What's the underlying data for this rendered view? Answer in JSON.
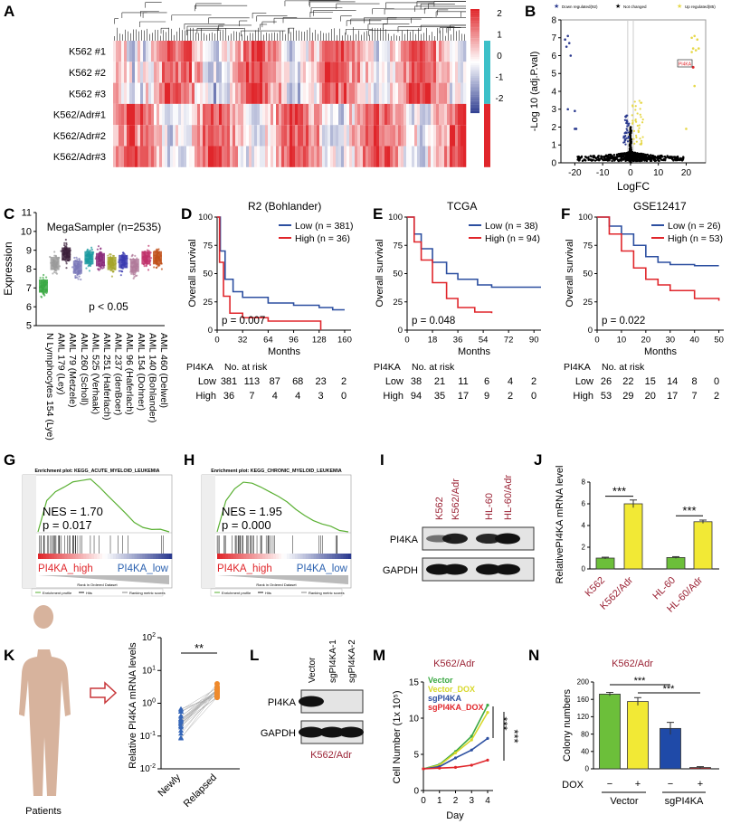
{
  "panel_letters": {
    "A": "A",
    "B": "B",
    "C": "C",
    "D": "D",
    "E": "E",
    "F": "F",
    "G": "G",
    "H": "H",
    "I": "I",
    "J": "J",
    "K": "K",
    "L": "L",
    "M": "M",
    "N": "N"
  },
  "colors": {
    "red": "#e0262b",
    "blue": "#2b3a8f",
    "green": "#6cbf3a",
    "yellow": "#f2e935",
    "darkblue": "#1f4aa8",
    "km_low": "#2c4fa0",
    "km_high": "#e0262b",
    "label_red": "#9b2335"
  },
  "chart_data": [
    {
      "panel": "A",
      "type": "heatmap",
      "rows": [
        "K562 #1",
        "K562 #2",
        "K562 #3",
        "K562/Adr#1",
        "K562/Adr#2",
        "K562/Adr#3"
      ],
      "colorbar_ticks": [
        2,
        1,
        0,
        -1,
        -2
      ],
      "range": [
        -2,
        2
      ]
    },
    {
      "panel": "B",
      "type": "scatter",
      "legend": [
        "Down regulated(92)",
        "Not changed",
        "Up regulated(85)"
      ],
      "xlabel": "LogFC",
      "ylabel": "-Log 10 (adj.P.val)",
      "xticks": [
        -20,
        -10,
        0,
        10,
        20
      ],
      "yticks": [
        0,
        1,
        2,
        3,
        4,
        5,
        6,
        7,
        8
      ],
      "xlim": [
        -25,
        27
      ],
      "ylim": [
        0,
        8
      ],
      "annotation": "PI4KA",
      "highlight": {
        "x": 22.5,
        "y": 5.35
      }
    },
    {
      "panel": "C",
      "type": "scatter",
      "title": "MegaSampler (n=2535)",
      "ylabel": "Expression",
      "ylim": [
        5,
        11
      ],
      "yticks": [
        5,
        6,
        7,
        8,
        9,
        10,
        11
      ],
      "annotation": "p < 0.05",
      "categories": [
        "N Lymphocytes 154 (Lye)",
        "AML 179 (Ley)",
        "AML 79 (Metzele)",
        "AML 260 (Scholl)",
        "AML 525 (Verhaak)",
        "AML 251 (Haferlach)",
        "AML 237 (denBoer)",
        "AML 96 (Haferlach)",
        "AML 154 (Dohner)",
        "AML 140 (Bohlander)",
        "AML 460 (Delwel)"
      ],
      "medians": [
        7.1,
        8.3,
        8.8,
        8.1,
        8.6,
        8.5,
        8.3,
        8.4,
        8.2,
        8.6,
        8.6
      ],
      "group_colors": [
        "#3aa843",
        "#9a9a9a",
        "#3b1f3a",
        "#7a78b8",
        "#1a9aa0",
        "#8a2a7a",
        "#a5a52a",
        "#3b3bb0",
        "#b07a9a",
        "#c0306a",
        "#c0501a"
      ]
    },
    {
      "panel": "D",
      "type": "line",
      "title": "R2  (Bohlander)",
      "xlabel": "Months",
      "ylabel": "Overall survival",
      "xlim": [
        0,
        168
      ],
      "ylim": [
        0,
        100
      ],
      "xticks": [
        0,
        32,
        64,
        96,
        128,
        160
      ],
      "yticks": [
        0,
        25,
        50,
        75,
        100
      ],
      "pvalue": "p = 0.007",
      "series": [
        {
          "name": "Low (n = 381)",
          "points": [
            [
              0,
              100
            ],
            [
              4,
              70
            ],
            [
              10,
              45
            ],
            [
              20,
              34
            ],
            [
              32,
              29
            ],
            [
              64,
              24
            ],
            [
              96,
              22
            ],
            [
              128,
              20
            ],
            [
              145,
              18
            ],
            [
              160,
              18
            ]
          ]
        },
        {
          "name": "High (n = 36)",
          "points": [
            [
              0,
              100
            ],
            [
              3,
              60
            ],
            [
              8,
              30
            ],
            [
              16,
              15
            ],
            [
              32,
              11
            ],
            [
              64,
              8
            ],
            [
              128,
              8
            ],
            [
              130,
              0
            ]
          ]
        }
      ],
      "risk_table": {
        "header": [
          "PI4KA",
          "No. at risk"
        ],
        "rows": [
          {
            "label": "Low",
            "values": [
              381,
              113,
              87,
              68,
              23,
              2
            ]
          },
          {
            "label": "High",
            "values": [
              36,
              7,
              4,
              4,
              3,
              0
            ]
          }
        ]
      }
    },
    {
      "panel": "E",
      "type": "line",
      "title": "TCGA",
      "xlabel": "Months",
      "ylabel": "Overall survival",
      "xlim": [
        0,
        95
      ],
      "ylim": [
        0,
        100
      ],
      "xticks": [
        0,
        18,
        36,
        54,
        72,
        90
      ],
      "yticks": [
        0,
        25,
        50,
        75,
        100
      ],
      "pvalue": "p = 0.048",
      "series": [
        {
          "name": "Low (n = 38)",
          "points": [
            [
              0,
              100
            ],
            [
              5,
              85
            ],
            [
              10,
              72
            ],
            [
              18,
              60
            ],
            [
              28,
              50
            ],
            [
              36,
              45
            ],
            [
              50,
              40
            ],
            [
              60,
              38
            ],
            [
              95,
              38
            ]
          ]
        },
        {
          "name": "High (n = 94)",
          "points": [
            [
              0,
              100
            ],
            [
              5,
              78
            ],
            [
              10,
              62
            ],
            [
              18,
              42
            ],
            [
              28,
              28
            ],
            [
              36,
              20
            ],
            [
              48,
              16
            ],
            [
              60,
              15
            ]
          ]
        }
      ],
      "risk_table": {
        "header": [
          "PI4KA",
          "No. at risk"
        ],
        "rows": [
          {
            "label": "Low",
            "values": [
              38,
              21,
              11,
              6,
              4,
              2
            ]
          },
          {
            "label": "High",
            "values": [
              94,
              35,
              17,
              9,
              2,
              0
            ]
          }
        ]
      }
    },
    {
      "panel": "F",
      "type": "line",
      "title": "GSE12417",
      "xlabel": "Months",
      "ylabel": "Overall survival",
      "xlim": [
        0,
        52
      ],
      "ylim": [
        0,
        100
      ],
      "xticks": [
        0,
        10,
        20,
        30,
        40,
        50
      ],
      "yticks": [
        0,
        25,
        50,
        75,
        100
      ],
      "pvalue": "p = 0.022",
      "series": [
        {
          "name": "Low (n = 26)",
          "points": [
            [
              0,
              100
            ],
            [
              5,
              92
            ],
            [
              10,
              85
            ],
            [
              15,
              75
            ],
            [
              20,
              65
            ],
            [
              25,
              60
            ],
            [
              30,
              58
            ],
            [
              40,
              57
            ],
            [
              50,
              57
            ]
          ]
        },
        {
          "name": "High (n = 53)",
          "points": [
            [
              0,
              100
            ],
            [
              5,
              85
            ],
            [
              10,
              70
            ],
            [
              15,
              55
            ],
            [
              20,
              45
            ],
            [
              25,
              40
            ],
            [
              30,
              35
            ],
            [
              40,
              28
            ],
            [
              50,
              26
            ]
          ]
        }
      ],
      "risk_table": {
        "header": [
          "PI4KA",
          "No. at risk"
        ],
        "rows": [
          {
            "label": "Low",
            "values": [
              26,
              22,
              15,
              14,
              8,
              0
            ]
          },
          {
            "label": "High",
            "values": [
              53,
              29,
              20,
              17,
              7,
              2
            ]
          }
        ]
      }
    },
    {
      "panel": "G",
      "type": "line",
      "title": "Enrichment plot: KEGG_ACUTE_MYELOID_LEUKEMIA",
      "nes": "NES = 1.70",
      "pvalue": "p = 0.017",
      "left_label": "PI4KA_high",
      "right_label": "PI4KA_low",
      "xlabel": "Rank in Ordered Dataset",
      "legend": [
        "Enrichment profile",
        "Hits",
        "Ranking metric scores"
      ],
      "es": [
        0,
        0.35,
        0.45,
        0.5,
        0.55,
        0.57,
        0.58,
        0.5,
        0.4,
        0.3,
        0.2,
        0.1,
        0.05,
        0.02,
        0.03,
        0
      ]
    },
    {
      "panel": "H",
      "type": "line",
      "title": "Enrichment plot: KEGG_CHRONIC_MYELOID_LEUKEMIA",
      "nes": "NES = 1.95",
      "pvalue": "p = 0.000",
      "left_label": "PI4KA_high",
      "right_label": "PI4KA_low",
      "xlabel": "Rank in Ordered Dataset",
      "legend": [
        "Enrichment profile",
        "Hits",
        "Ranking metric scores"
      ],
      "es": [
        0,
        0.35,
        0.48,
        0.55,
        0.54,
        0.5,
        0.45,
        0.4,
        0.33,
        0.25,
        0.18,
        0.12,
        0.08,
        0.06,
        0.02,
        0
      ]
    },
    {
      "panel": "I",
      "type": "blot",
      "lanes": [
        "K562",
        "K562/Adr",
        "HL-60",
        "HL-60/Adr"
      ],
      "bands": [
        {
          "name": "PI4KA",
          "intensity": [
            0.35,
            0.9,
            0.85,
            1.0
          ]
        },
        {
          "name": "GAPDH",
          "intensity": [
            1,
            1,
            1,
            1
          ]
        }
      ]
    },
    {
      "panel": "J",
      "type": "bar",
      "categories": [
        "K562",
        "K562/Adr",
        "HL-60",
        "HL-60/Adr"
      ],
      "values": [
        1.0,
        6.0,
        1.05,
        4.35
      ],
      "errors": [
        0.08,
        0.35,
        0.08,
        0.15
      ],
      "ylabel": "RelativePI4KA mRNA level",
      "ylim": [
        0,
        8
      ],
      "yticks": [
        0,
        2,
        4,
        6,
        8
      ],
      "significance": [
        "***",
        "***"
      ]
    },
    {
      "panel": "K",
      "type": "scatter",
      "label": "Patients",
      "ylabel": "Relative PI4KA mRNA levels",
      "categories": [
        "Newly",
        "Relapsed"
      ],
      "yticks": [
        "10-2",
        "10-1",
        "100",
        "101",
        "102"
      ],
      "ylim": [
        0.01,
        100
      ],
      "log_scale": true,
      "significance": "**"
    },
    {
      "panel": "L",
      "type": "blot",
      "lanes": [
        "Vector",
        "sgPI4KA-1",
        "sgPI4KA-2"
      ],
      "bands": [
        {
          "name": "PI4KA",
          "intensity": [
            1,
            0,
            0
          ]
        },
        {
          "name": "GAPDH",
          "intensity": [
            1,
            1,
            1
          ]
        }
      ],
      "caption": "K562/Adr"
    },
    {
      "panel": "M",
      "type": "line",
      "title": "K562/Adr",
      "xlabel": "Day",
      "ylabel": "Cell Number (1x 10⁵)",
      "x": [
        0,
        1,
        2,
        3,
        4
      ],
      "xlim": [
        0,
        4
      ],
      "ylim": [
        0,
        15
      ],
      "yticks": [
        0,
        5,
        10,
        15
      ],
      "significance": [
        "***",
        "***"
      ],
      "series": [
        {
          "name": "Vector",
          "color": "#3aa843",
          "values": [
            3,
            3.6,
            5.4,
            7.5,
            11.8
          ]
        },
        {
          "name": "Vector_DOX",
          "color": "#d8d82a",
          "values": [
            3,
            3.5,
            5.2,
            7.0,
            10.8
          ]
        },
        {
          "name": "sgPI4KA",
          "color": "#2c4fa0",
          "values": [
            3,
            3.3,
            4.5,
            5.6,
            7.2
          ]
        },
        {
          "name": "sgPI4KA_DOX",
          "color": "#e0262b",
          "values": [
            3,
            3.1,
            3.2,
            3.5,
            4.2
          ]
        }
      ]
    },
    {
      "panel": "N",
      "type": "bar",
      "title": "K562/Adr",
      "ylabel": "Colony numbers",
      "ylim": [
        0,
        200
      ],
      "yticks": [
        0,
        40,
        80,
        120,
        160,
        200
      ],
      "values": [
        172,
        155,
        93,
        3
      ],
      "errors": [
        4,
        9,
        14,
        2
      ],
      "dox": [
        "−",
        "+",
        "−",
        "+"
      ],
      "dox_label": "DOX",
      "groups": [
        "Vector",
        "sgPI4KA"
      ],
      "significance": [
        "***",
        "***"
      ]
    }
  ]
}
